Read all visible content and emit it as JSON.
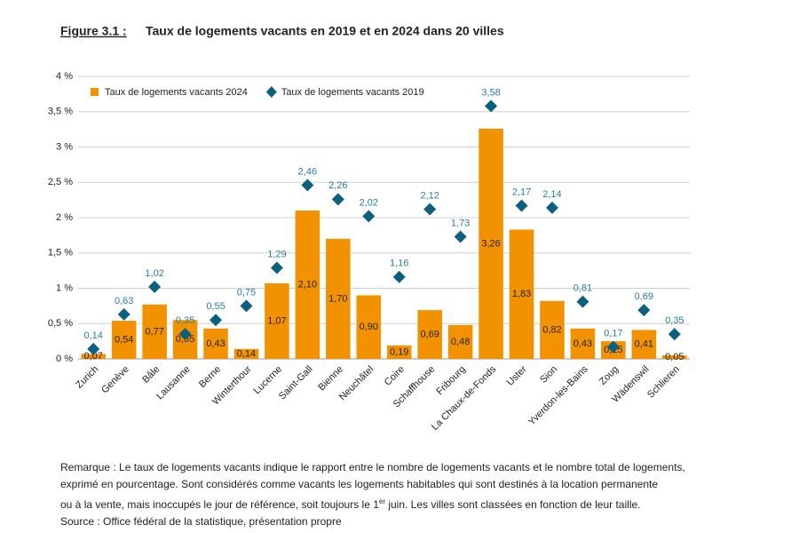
{
  "chart_data": {
    "type": "bar",
    "figure": "Figure 3.1 :",
    "title": "Taux de logements vacants en 2019 et en 2024 dans 20 villes",
    "categories": [
      "Zurich",
      "Genève",
      "Bâle",
      "Lausanne",
      "Berne",
      "Winterthour",
      "Lucerne",
      "Saint-Gall",
      "Bienne",
      "Neuchâtel",
      "Coire",
      "Schaffhouse",
      "Fribourg",
      "La Chaux-de-Fonds",
      "Uster",
      "Sion",
      "Yverdon-les-Bains",
      "Zoug",
      "Wädenswil",
      "Schlieren"
    ],
    "series": [
      {
        "name": "Taux de logements vacants 2024",
        "type": "bar",
        "color": "#f39200",
        "values": [
          0.07,
          0.54,
          0.77,
          0.55,
          0.43,
          0.14,
          1.07,
          2.1,
          1.7,
          0.9,
          0.19,
          0.69,
          0.48,
          3.26,
          1.83,
          0.82,
          0.43,
          0.25,
          0.41,
          0.05
        ],
        "value_labels": [
          "0,07",
          "0,54",
          "0,77",
          "0,55",
          "0,43",
          "0,14",
          "1,07",
          "2,10",
          "1,70",
          "0,90",
          "0,19",
          "0,69",
          "0,48",
          "3,26",
          "1,83",
          "0,82",
          "0,43",
          "0,25",
          "0,41",
          "0,05"
        ]
      },
      {
        "name": "Taux de logements vacants 2019",
        "type": "diamond",
        "color": "#0b6080",
        "values": [
          0.14,
          0.63,
          1.02,
          0.35,
          0.55,
          0.75,
          1.29,
          2.46,
          2.26,
          2.02,
          1.16,
          2.12,
          1.73,
          3.58,
          2.17,
          2.14,
          0.81,
          0.17,
          0.69,
          0.35
        ],
        "value_labels": [
          "0,14",
          "0,63",
          "1,02",
          "0,35",
          "0,55",
          "0,75",
          "1,29",
          "2,46",
          "2,26",
          "2,02",
          "1,16",
          "2,12",
          "1,73",
          "3,58",
          "2,17",
          "2,14",
          "0,81",
          "0,17",
          "0,69",
          "0,35"
        ]
      }
    ],
    "ylim": [
      0,
      4
    ],
    "yticks": [
      {
        "value": 0,
        "label": "0 %"
      },
      {
        "value": 0.5,
        "label": "0,5 %"
      },
      {
        "value": 1,
        "label": "1 %"
      },
      {
        "value": 1.5,
        "label": "1,5 %"
      },
      {
        "value": 2,
        "label": "2 %"
      },
      {
        "value": 2.5,
        "label": "2,5 %"
      },
      {
        "value": 3,
        "label": "3 %"
      },
      {
        "value": 3.5,
        "label": "3,5 %"
      },
      {
        "value": 4,
        "label": "4 %"
      }
    ],
    "grid": true,
    "legend": "upper-left",
    "note": [
      "Remarque : Le taux de logements vacants indique le rapport entre le nombre de logements vacants et le nombre total de logements,",
      "exprimé en pourcentage. Sont considérés comme vacants les logements habitables qui sont destinés à la location permanente"
    ],
    "note_line3": [
      "ou à la vente, mais inoccupés le jour de référence, soit toujours le 1",
      "er",
      " juin. Les villes sont classées en fonction de leur taille."
    ],
    "source": "Source : Office fédéral de la statistique, présentation propre"
  }
}
